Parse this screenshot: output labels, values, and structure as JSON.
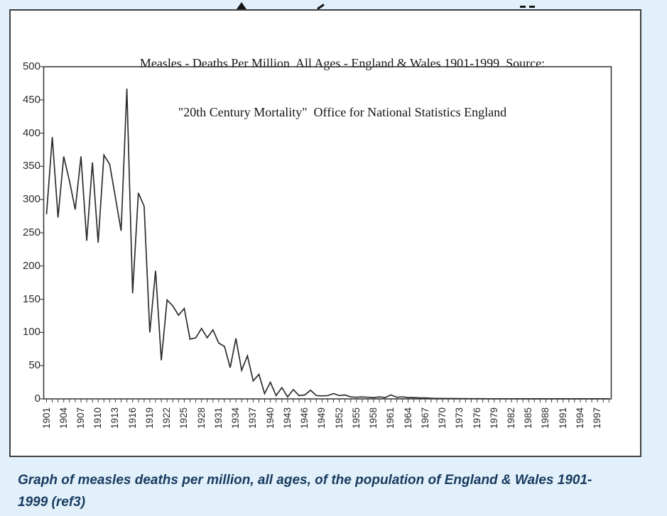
{
  "window": {
    "background": "#e1f0fa"
  },
  "chart": {
    "title_line1": "Measles - Deaths Per Million  All Ages - England & Wales 1901-1999  Source:",
    "title_line2": "\"20th Century Mortality\"  Office for National Statistics England",
    "box_background": "#ffffff",
    "box_border_color": "#3f3f3f",
    "line_color": "#2d2d2d",
    "axis_color": "#3d3d3d",
    "label_color": "#2a2a2a"
  },
  "caption": {
    "line1": "Graph of measles deaths per million, all ages, of the population of England & Wales 1901-",
    "line2": "1999 (ref3)",
    "color": "#183a5f"
  },
  "chart_data": {
    "type": "line",
    "title": "Measles - Deaths Per Million All Ages - England & Wales 1901-1999 Source: \"20th Century Mortality\" Office for National Statistics England",
    "xlabel": "",
    "ylabel": "",
    "ylim": [
      0,
      500
    ],
    "y_ticks": [
      0,
      50,
      100,
      150,
      200,
      250,
      300,
      350,
      400,
      450,
      500
    ],
    "x_tick_labels": [
      1901,
      1904,
      1907,
      1910,
      1913,
      1916,
      1919,
      1922,
      1925,
      1928,
      1931,
      1934,
      1937,
      1940,
      1943,
      1946,
      1949,
      1952,
      1955,
      1958,
      1961,
      1964,
      1967,
      1970,
      1973,
      1976,
      1979,
      1982,
      1985,
      1988,
      1991,
      1994,
      1997
    ],
    "grid": false,
    "legend": "none",
    "years": [
      1901,
      1902,
      1903,
      1904,
      1905,
      1906,
      1907,
      1908,
      1909,
      1910,
      1911,
      1912,
      1913,
      1914,
      1915,
      1916,
      1917,
      1918,
      1919,
      1920,
      1921,
      1922,
      1923,
      1924,
      1925,
      1926,
      1927,
      1928,
      1929,
      1930,
      1931,
      1932,
      1933,
      1934,
      1935,
      1936,
      1937,
      1938,
      1939,
      1940,
      1941,
      1942,
      1943,
      1944,
      1945,
      1946,
      1947,
      1948,
      1949,
      1950,
      1951,
      1952,
      1953,
      1954,
      1955,
      1956,
      1957,
      1958,
      1959,
      1960,
      1961,
      1962,
      1963,
      1964,
      1965,
      1966,
      1967,
      1968,
      1969,
      1970,
      1971,
      1972,
      1973,
      1974,
      1975,
      1976,
      1977,
      1978,
      1979,
      1980,
      1981,
      1982,
      1983,
      1984,
      1985,
      1986,
      1987,
      1988,
      1989,
      1990,
      1991,
      1992,
      1993,
      1994,
      1995,
      1996,
      1997,
      1998,
      1999
    ],
    "values": [
      278,
      394,
      273,
      365,
      328,
      285,
      365,
      238,
      356,
      235,
      367,
      353,
      303,
      253,
      467,
      159,
      310,
      290,
      100,
      193,
      58,
      149,
      140,
      126,
      136,
      90,
      92,
      106,
      92,
      104,
      84,
      79,
      47,
      91,
      43,
      65,
      27,
      37,
      8,
      25,
      5,
      17,
      3,
      14,
      5,
      6,
      13,
      5,
      4.5,
      5,
      8,
      5,
      6,
      3,
      2.5,
      3,
      2.5,
      2,
      3,
      2,
      6,
      2.5,
      3,
      2,
      2,
      1.5,
      1.5,
      1,
      0.8,
      0.6,
      0.5,
      0.5,
      0.4,
      0.4,
      0.3,
      0.3,
      0.3,
      0.2,
      0.2,
      0.2,
      0.2,
      0.2,
      0.1,
      0.1,
      0.1,
      0.1,
      0.1,
      0.1,
      0.1,
      0.1,
      0.1,
      0.1,
      0.1,
      0.1,
      0.1,
      0.1,
      0.1,
      0.1,
      0.1
    ]
  }
}
